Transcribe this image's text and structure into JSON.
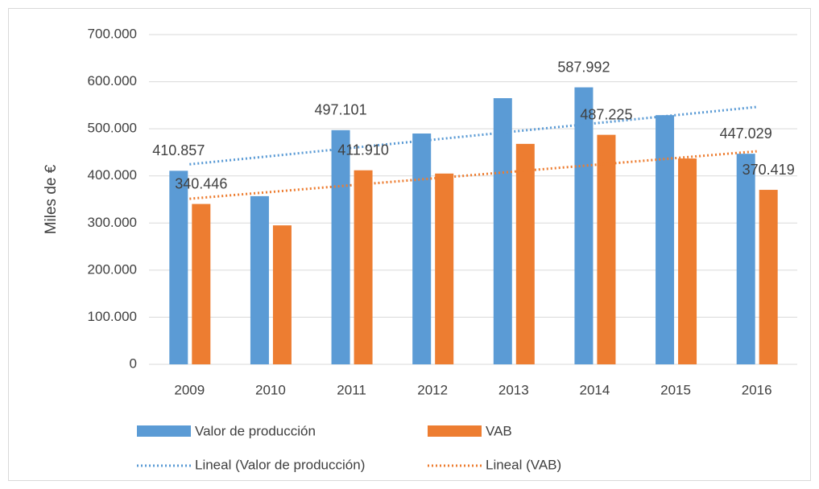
{
  "chart_data": {
    "type": "bar",
    "y_axis_label": "Miles de €",
    "categories": [
      "2009",
      "2010",
      "2011",
      "2012",
      "2013",
      "2014",
      "2015",
      "2016"
    ],
    "series": [
      {
        "name": "Valor de producción",
        "color": "#5b9bd5",
        "values": [
          410857,
          357000,
          497101,
          490000,
          565000,
          587992,
          529000,
          447029
        ],
        "value_labels": [
          "410.857",
          null,
          "497.101",
          null,
          null,
          "587.992",
          null,
          "447.029"
        ]
      },
      {
        "name": "VAB",
        "color": "#ed7d31",
        "values": [
          340446,
          295000,
          411910,
          405000,
          468000,
          487225,
          437000,
          370419
        ],
        "value_labels": [
          "340.446",
          null,
          "411.910",
          null,
          null,
          "487.225",
          null,
          "370.419"
        ]
      }
    ],
    "trendlines": [
      {
        "name": "Lineal (Valor de producción)",
        "series": 0,
        "type": "linear"
      },
      {
        "name": "Lineal (VAB)",
        "series": 1,
        "type": "linear"
      }
    ],
    "ylim": [
      0,
      700000
    ],
    "yticks": [
      0,
      {
        "value": 100000,
        "label": "100.000"
      },
      {
        "value": 200000,
        "label": "200.000"
      },
      {
        "value": 300000,
        "label": "300.000"
      },
      {
        "value": 400000,
        "label": "400.000"
      },
      {
        "value": 500000,
        "label": "500.000"
      },
      {
        "value": 600000,
        "label": "600.000"
      },
      {
        "value": 700000,
        "label": "700.000"
      }
    ],
    "grid": true
  }
}
